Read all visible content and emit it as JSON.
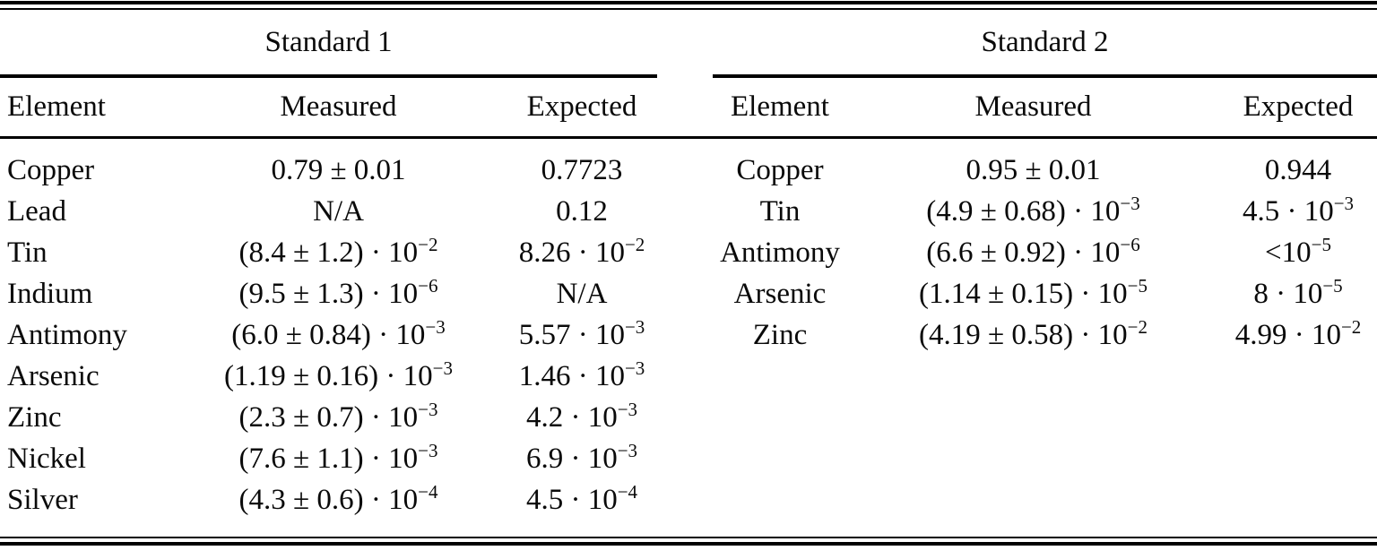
{
  "table": {
    "standards": [
      {
        "title": "Standard 1",
        "headers": [
          "Element",
          "Measured",
          "Expected"
        ],
        "rows": [
          [
            "Copper",
            "0.79 ± 0.01",
            "0.7723"
          ],
          [
            "Lead",
            "N/A",
            "0.12"
          ],
          [
            "Tin",
            "(8.4 ± 1.2) · 10^{−2}",
            "8.26 · 10^{−2}"
          ],
          [
            "Indium",
            "(9.5 ± 1.3) · 10^{−6}",
            "N/A"
          ],
          [
            "Antimony",
            "(6.0 ± 0.84) · 10^{−3}",
            "5.57 · 10^{−3}"
          ],
          [
            "Arsenic",
            "(1.19 ± 0.16) · 10^{−3}",
            "1.46 · 10^{−3}"
          ],
          [
            "Zinc",
            "(2.3 ± 0.7) · 10^{−3}",
            "4.2 · 10^{−3}"
          ],
          [
            "Nickel",
            "(7.6 ± 1.1) · 10^{−3}",
            "6.9 · 10^{−3}"
          ],
          [
            "Silver",
            "(4.3 ± 0.6) · 10^{−4}",
            "4.5 · 10^{−4}"
          ]
        ]
      },
      {
        "title": "Standard 2",
        "headers": [
          "Element",
          "Measured",
          "Expected"
        ],
        "rows": [
          [
            "Copper",
            "0.95 ± 0.01",
            "0.944"
          ],
          [
            "Tin",
            "(4.9 ± 0.68) · 10^{−3}",
            "4.5 · 10^{−3}"
          ],
          [
            "Antimony",
            "(6.6 ± 0.92) · 10^{−6}",
            "<10^{−5}"
          ],
          [
            "Arsenic",
            "(1.14 ± 0.15) · 10^{−5}",
            "8 · 10^{−5}"
          ],
          [
            "Zinc",
            "(4.19 ± 0.58) · 10^{−2}",
            "4.99 · 10^{−2}"
          ]
        ]
      }
    ],
    "colors": {
      "text": "#0a0a0a",
      "rule": "#000000",
      "background": "#ffffff"
    }
  }
}
